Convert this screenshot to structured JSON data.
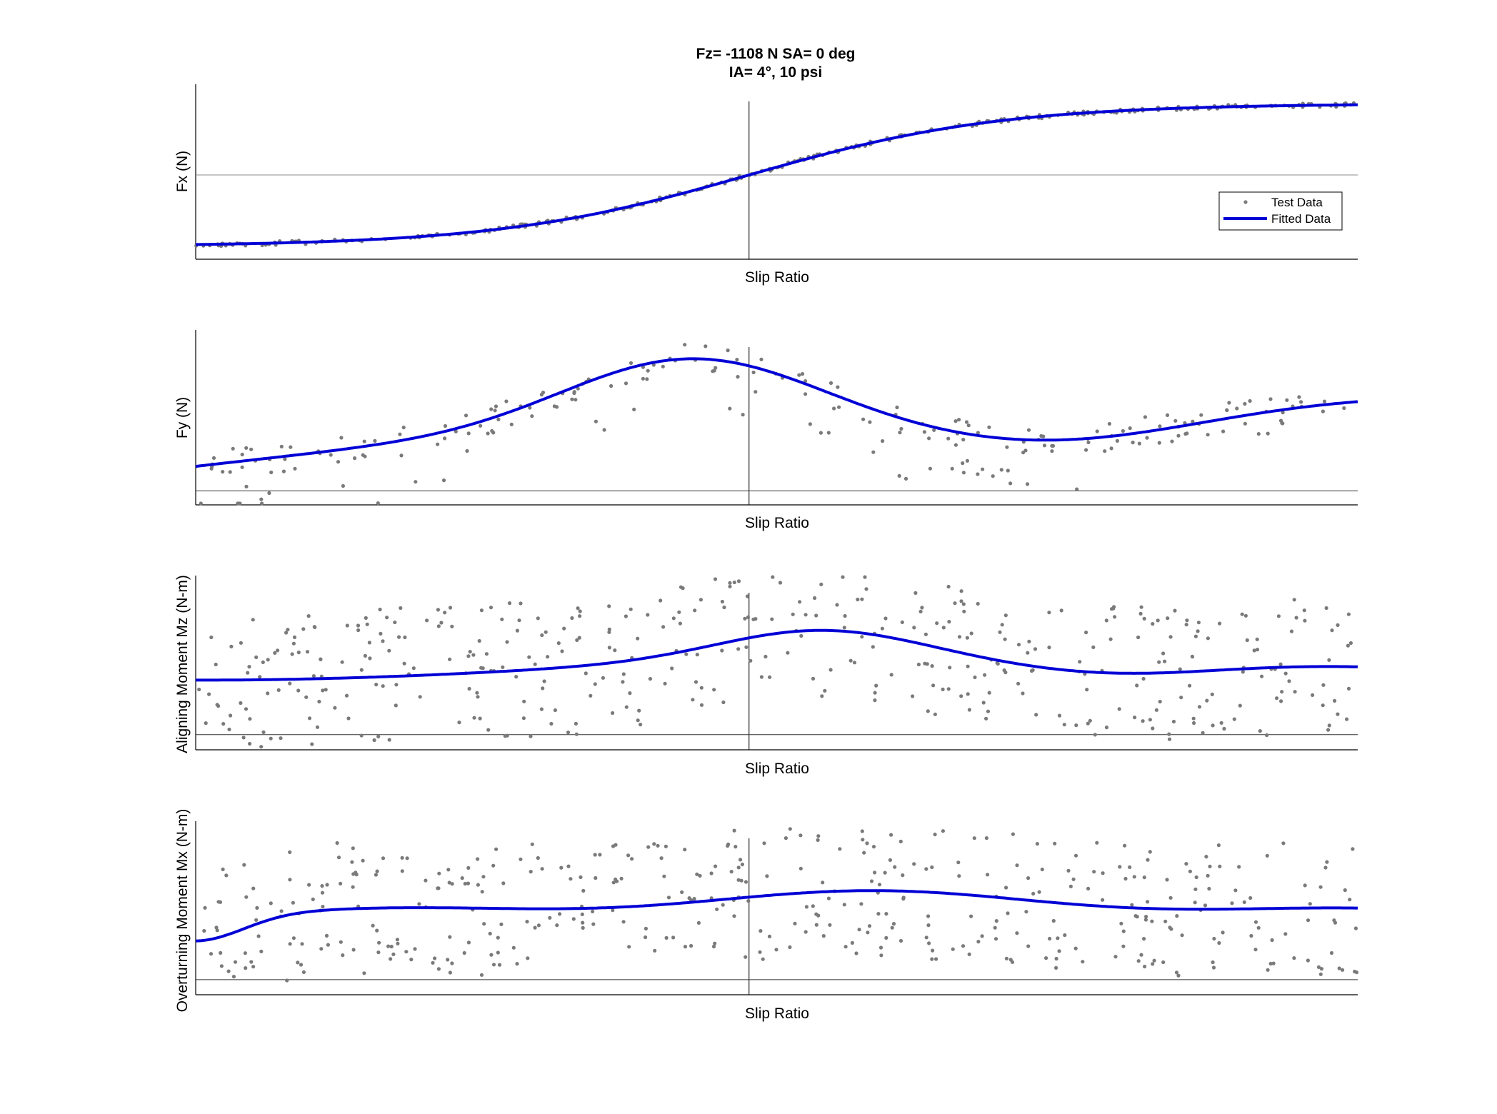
{
  "figure": {
    "title_line1": "Fz= -1108 N SA= 0 deg",
    "title_line2": "IA= 4°, 10 psi"
  },
  "legend": {
    "test_label": "Test Data",
    "fit_label": "Fitted Data"
  },
  "colors": {
    "test_data": "#7a7a7a",
    "fitted_data": "#0000d6",
    "axes": "#000000",
    "reference_line": "#8c8c8c"
  },
  "chart_data": [
    {
      "type": "scatter",
      "xlabel": "Slip Ratio",
      "ylabel": "Fx (N)",
      "ticks_shown": false,
      "xlim": [
        -1,
        1.1
      ],
      "ylim": [
        -1.3,
        1.4
      ],
      "zero_lines": true,
      "legend_position": "right",
      "series": [
        {
          "name": "Test Data",
          "kind": "points",
          "model": "fx",
          "noise": 0.03,
          "count": 300,
          "seed": 11
        },
        {
          "name": "Fitted Data",
          "kind": "line",
          "model": "fx"
        }
      ]
    },
    {
      "type": "scatter",
      "xlabel": "Slip Ratio",
      "ylabel": "Fy (N)",
      "ticks_shown": false,
      "xlim": [
        -1,
        1.1
      ],
      "ylim": [
        -0.2,
        2.3
      ],
      "zero_lines": true,
      "series": [
        {
          "name": "Test Data",
          "kind": "points",
          "model": "fy",
          "noise": 0.22,
          "count": 220,
          "seed": 23
        },
        {
          "name": "Fitted Data",
          "kind": "line",
          "model": "fy"
        }
      ]
    },
    {
      "type": "scatter",
      "xlabel": "Slip Ratio",
      "ylabel": "Aligning Moment Mz (N-m)",
      "ticks_shown": false,
      "xlim": [
        -1,
        1.1
      ],
      "ylim": [
        -0.2,
        2.1
      ],
      "zero_lines": true,
      "series": [
        {
          "name": "Test Data",
          "kind": "points",
          "model": "mz",
          "noise": 0.9,
          "count": 420,
          "seed": 37
        },
        {
          "name": "Fitted Data",
          "kind": "line",
          "model": "mz"
        }
      ]
    },
    {
      "type": "scatter",
      "xlabel": "Slip Ratio",
      "ylabel": "Overturning Moment Mx (N-m)",
      "ticks_shown": false,
      "xlim": [
        -1,
        1.1
      ],
      "ylim": [
        -0.2,
        2.1
      ],
      "zero_lines": true,
      "series": [
        {
          "name": "Test Data",
          "kind": "points",
          "model": "mx",
          "noise": 0.9,
          "count": 420,
          "seed": 53
        },
        {
          "name": "Fitted Data",
          "kind": "line",
          "model": "mx"
        }
      ]
    }
  ]
}
